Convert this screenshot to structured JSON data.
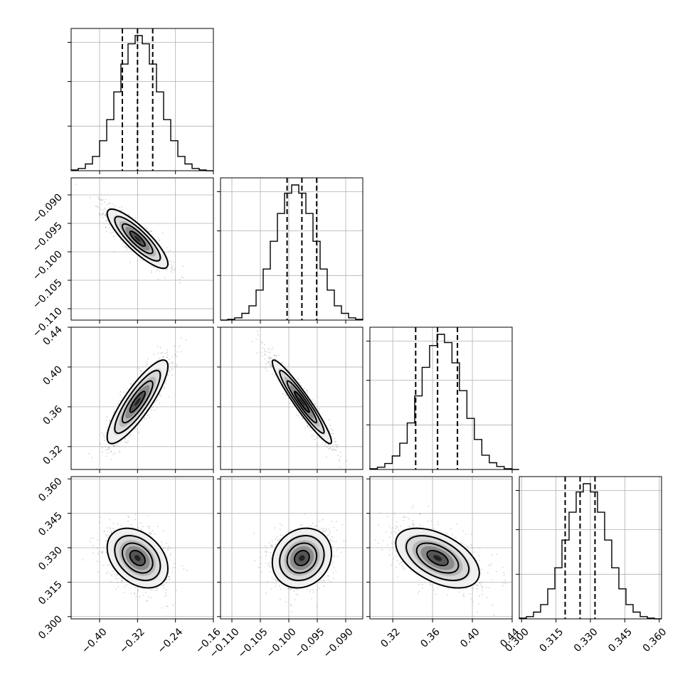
{
  "chart_data": {
    "type": "corner",
    "grid": true,
    "params": [
      {
        "range": [
          -0.46,
          -0.16
        ],
        "ticks": [
          -0.4,
          -0.32,
          -0.24,
          -0.16
        ],
        "tick_labels": [
          "−0.40",
          "−0.32",
          "−0.24",
          "−0.16"
        ],
        "quantiles": [
          -0.352,
          -0.32,
          -0.288
        ],
        "hist_centers": [
          -0.4525,
          -0.4375,
          -0.4225,
          -0.4075,
          -0.3925,
          -0.3775,
          -0.3625,
          -0.3475,
          -0.3325,
          -0.3175,
          -0.3025,
          -0.2875,
          -0.2725,
          -0.2575,
          -0.2425,
          -0.2275,
          -0.2125,
          -0.1975,
          -0.1825,
          -0.1675
        ],
        "hist_counts": [
          1,
          3,
          9,
          19,
          40,
          68,
          105,
          142,
          169,
          180,
          169,
          142,
          105,
          68,
          40,
          19,
          9,
          3,
          1,
          0
        ]
      },
      {
        "range": [
          -0.112,
          -0.087
        ],
        "ticks": [
          -0.11,
          -0.105,
          -0.1,
          -0.095,
          -0.09
        ],
        "tick_labels": [
          "−0.110",
          "−0.105",
          "−0.100",
          "−0.095",
          "−0.090"
        ],
        "quantiles": [
          -0.1003,
          -0.0977,
          -0.0951
        ],
        "hist_centers": [
          -0.111375,
          -0.110125,
          -0.108875,
          -0.107625,
          -0.106375,
          -0.105125,
          -0.103875,
          -0.102625,
          -0.101375,
          -0.100125,
          -0.098875,
          -0.097625,
          -0.096375,
          -0.095125,
          -0.093875,
          -0.092625,
          -0.091375,
          -0.090125,
          -0.088875,
          -0.087625
        ],
        "hist_counts": [
          0,
          1,
          3,
          9,
          19,
          40,
          68,
          105,
          142,
          169,
          180,
          169,
          142,
          105,
          68,
          40,
          19,
          9,
          3,
          1
        ]
      },
      {
        "range": [
          0.297,
          0.44
        ],
        "ticks": [
          0.32,
          0.36,
          0.4,
          0.44
        ],
        "tick_labels": [
          "0.32",
          "0.36",
          "0.40",
          "0.44"
        ],
        "quantiles": [
          0.343,
          0.365,
          0.385
        ],
        "hist_centers": [
          0.30075,
          0.30825,
          0.31575,
          0.32325,
          0.33075,
          0.33825,
          0.34575,
          0.35325,
          0.36075,
          0.36825,
          0.37575,
          0.38325,
          0.39075,
          0.39825,
          0.40575,
          0.41325,
          0.42075,
          0.42825,
          0.43575,
          0.44325
        ],
        "hist_counts": [
          1,
          3,
          8,
          18,
          35,
          62,
          98,
          136,
          165,
          180,
          169,
          142,
          105,
          68,
          40,
          19,
          9,
          4,
          1,
          0
        ]
      },
      {
        "range": [
          0.299,
          0.361
        ],
        "ticks": [
          0.3,
          0.315,
          0.33,
          0.345,
          0.36
        ],
        "tick_labels": [
          "0.300",
          "0.315",
          "0.330",
          "0.345",
          "0.360"
        ],
        "quantiles": [
          0.319,
          0.3255,
          0.332
        ],
        "hist_centers": [
          0.30055,
          0.30365,
          0.30675,
          0.30985,
          0.31295,
          0.31605,
          0.31915,
          0.32225,
          0.32535,
          0.32845,
          0.33155,
          0.33465,
          0.33775,
          0.34085,
          0.34395,
          0.34705,
          0.35015,
          0.35325,
          0.35635,
          0.35945
        ],
        "hist_counts": [
          1,
          3,
          9,
          19,
          40,
          68,
          105,
          142,
          169,
          180,
          169,
          142,
          105,
          68,
          40,
          19,
          9,
          3,
          1,
          0
        ]
      }
    ],
    "pairs": [
      {
        "x": 0,
        "y": 1,
        "corr": -0.85
      },
      {
        "x": 0,
        "y": 2,
        "corr": 0.85
      },
      {
        "x": 1,
        "y": 2,
        "corr": -0.95
      },
      {
        "x": 0,
        "y": 3,
        "corr": -0.35
      },
      {
        "x": 1,
        "y": 3,
        "corr": 0.15
      },
      {
        "x": 2,
        "y": 3,
        "corr": -0.5
      }
    ],
    "contour_levels_sigma": [
      0.5,
      1.0,
      1.5,
      2.0
    ],
    "samples_per_panel": 1200
  }
}
